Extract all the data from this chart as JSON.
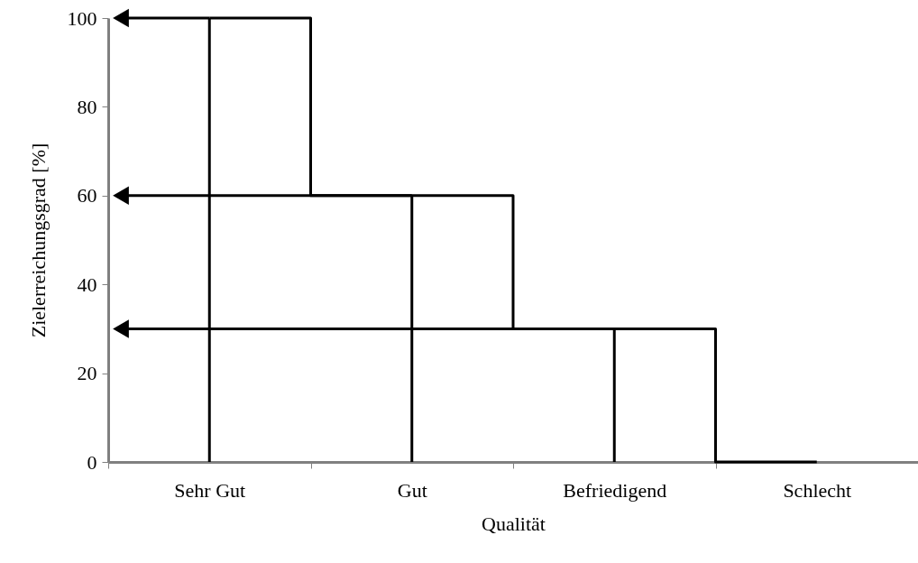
{
  "chart_data": {
    "type": "step",
    "xlabel": "Qualität",
    "ylabel": "Zielerreichungsgrad [%]",
    "categories": [
      "Sehr Gut",
      "Gut",
      "Befriedigend",
      "Schlecht"
    ],
    "values": [
      100,
      60,
      30,
      0
    ],
    "color": "#000000",
    "ylim": [
      0,
      100
    ],
    "yticks": [
      0,
      20,
      40,
      60,
      80,
      100
    ]
  }
}
